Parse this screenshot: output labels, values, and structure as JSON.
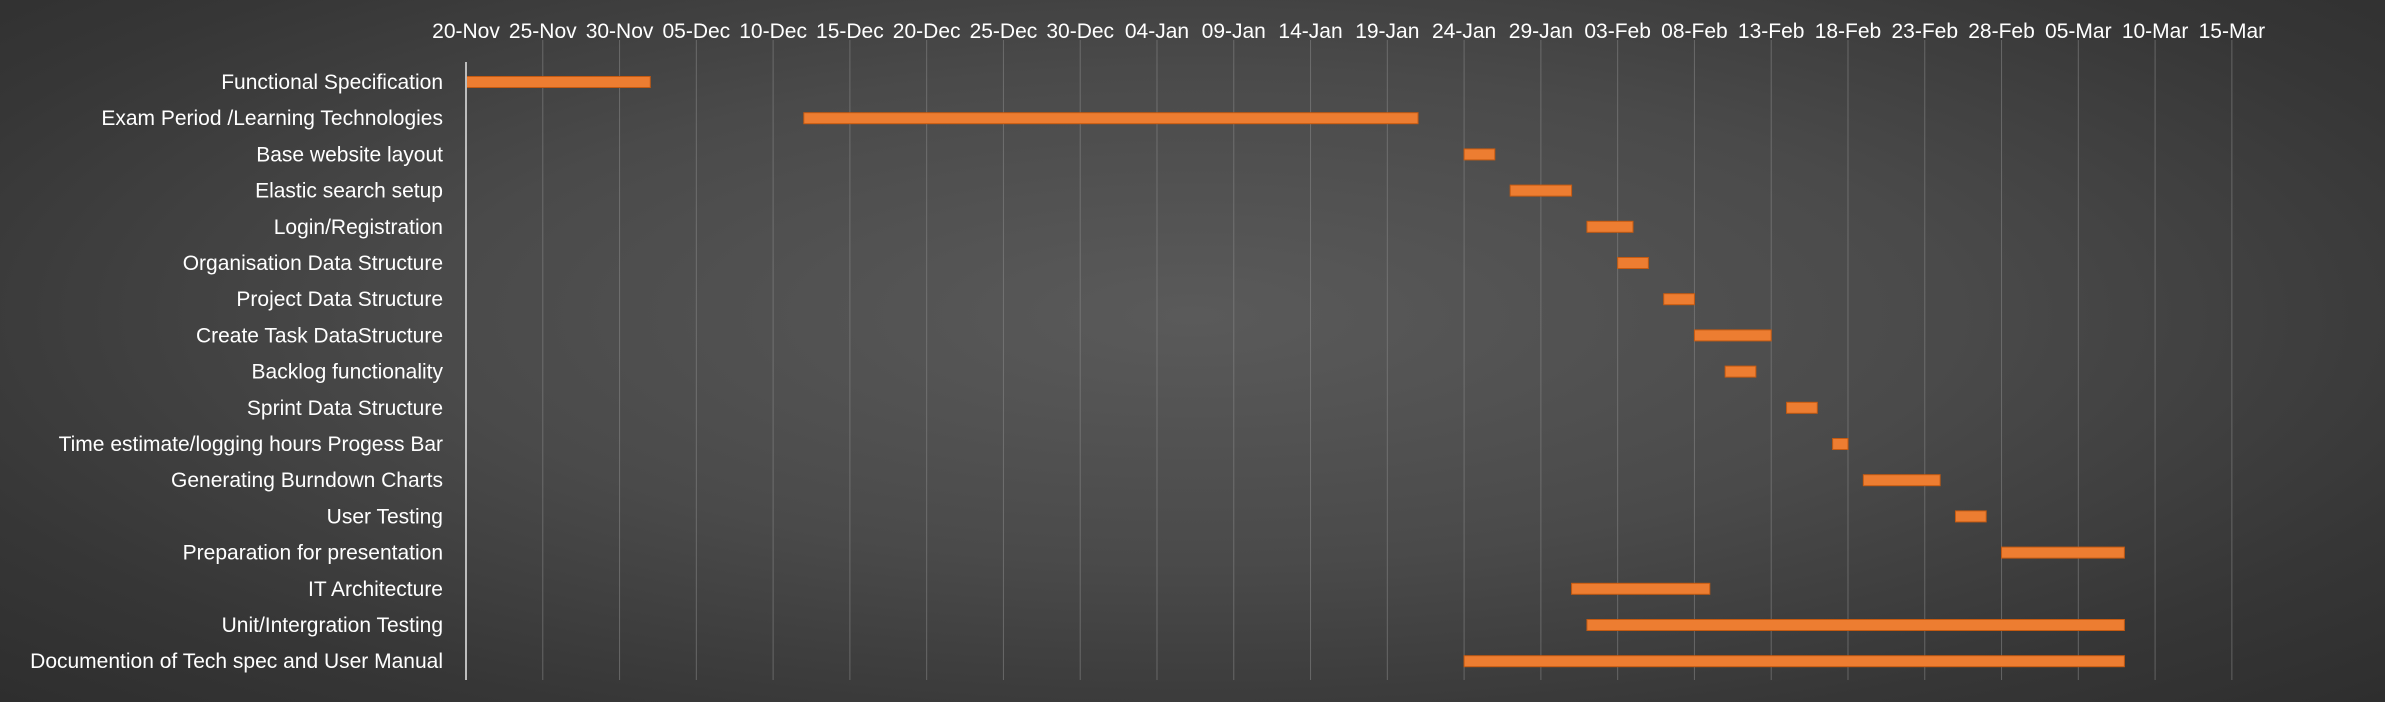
{
  "chart_data": {
    "type": "gantt",
    "title": "",
    "xlabel": "",
    "ylabel": "",
    "x_axis": {
      "start": "2019-11-20",
      "end": "2020-03-20",
      "tick_labels": [
        "20-Nov",
        "25-Nov",
        "30-Nov",
        "05-Dec",
        "10-Dec",
        "15-Dec",
        "20-Dec",
        "25-Dec",
        "30-Dec",
        "04-Jan",
        "09-Jan",
        "14-Jan",
        "19-Jan",
        "24-Jan",
        "29-Jan",
        "03-Feb",
        "08-Feb",
        "13-Feb",
        "18-Feb",
        "23-Feb",
        "28-Feb",
        "05-Mar",
        "10-Mar",
        "15-Mar"
      ]
    },
    "grid": true,
    "bar_color": "#ED7D31",
    "tasks": [
      {
        "name": "Functional Specification",
        "start": "2019-11-20",
        "end": "2019-12-02"
      },
      {
        "name": "Exam Period /Learning Technologies",
        "start": "2019-12-12",
        "end": "2020-01-21"
      },
      {
        "name": "Base website layout",
        "start": "2020-01-24",
        "end": "2020-01-26"
      },
      {
        "name": "Elastic search setup",
        "start": "2020-01-27",
        "end": "2020-01-31"
      },
      {
        "name": "Login/Registration",
        "start": "2020-02-01",
        "end": "2020-02-04"
      },
      {
        "name": "Organisation Data Structure",
        "start": "2020-02-03",
        "end": "2020-02-05"
      },
      {
        "name": "Project Data Structure",
        "start": "2020-02-06",
        "end": "2020-02-08"
      },
      {
        "name": "Create Task DataStructure",
        "start": "2020-02-08",
        "end": "2020-02-13"
      },
      {
        "name": "Backlog functionality",
        "start": "2020-02-10",
        "end": "2020-02-12"
      },
      {
        "name": "Sprint Data Structure",
        "start": "2020-02-14",
        "end": "2020-02-16"
      },
      {
        "name": "Time estimate/logging hours Progess Bar",
        "start": "2020-02-17",
        "end": "2020-02-18"
      },
      {
        "name": "Generating Burndown Charts",
        "start": "2020-02-19",
        "end": "2020-02-24"
      },
      {
        "name": "User Testing",
        "start": "2020-02-25",
        "end": "2020-02-27"
      },
      {
        "name": "Preparation for presentation",
        "start": "2020-02-28",
        "end": "2020-03-07"
      },
      {
        "name": "IT Architecture",
        "start": "2020-01-31",
        "end": "2020-02-09"
      },
      {
        "name": "Unit/Intergration Testing",
        "start": "2020-02-01",
        "end": "2020-03-07"
      },
      {
        "name": "Documention of Tech spec and User Manual",
        "start": "2020-01-24",
        "end": "2020-03-07"
      }
    ]
  }
}
